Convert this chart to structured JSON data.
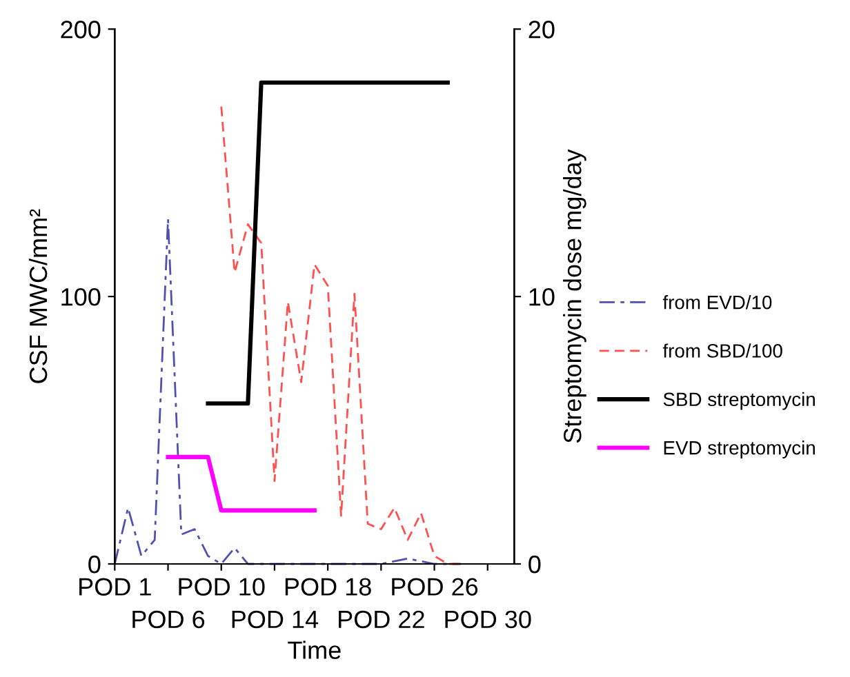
{
  "chart_data": {
    "type": "line",
    "xlabel": "Time",
    "ylabel": "CSF MWC/mm²",
    "y2label": "Streptomycin dose mg/day",
    "categories": [
      "POD 1",
      null,
      null,
      null,
      "POD 6",
      null,
      null,
      null,
      "POD 10",
      null,
      null,
      null,
      "POD 14",
      null,
      null,
      null,
      "POD 18",
      null,
      null,
      null,
      "POD 22",
      null,
      null,
      null,
      "POD 26",
      null,
      null,
      null,
      "POD 30",
      null,
      null
    ],
    "ylim": [
      0,
      200
    ],
    "yticks": [
      0,
      100,
      200
    ],
    "y2lim": [
      0,
      20
    ],
    "y2ticks": [
      0,
      10,
      20
    ],
    "grid": false,
    "legend": "right",
    "marker": "none",
    "series": [
      {
        "name": "from EVD/10",
        "color": "#5050b0",
        "line_style": "dashdot",
        "values": [
          0,
          21,
          3,
          9,
          129,
          11,
          13,
          3,
          0,
          6,
          0,
          0,
          0,
          0,
          0,
          0,
          0,
          0,
          0,
          0,
          0,
          1,
          2,
          1,
          0,
          0,
          0,
          null,
          null,
          null,
          null
        ]
      },
      {
        "name": "from SBD/100",
        "color": "#ff5050",
        "line_style": "dashed",
        "values": [
          null,
          null,
          null,
          null,
          null,
          null,
          null,
          null,
          171,
          109,
          127,
          120,
          31,
          98,
          68,
          112,
          104,
          18,
          101,
          15,
          13,
          21,
          9,
          19,
          3,
          0,
          0,
          null,
          null,
          null,
          null
        ]
      },
      {
        "name": "SBD streptomycin",
        "color": "#000000",
        "line_style": "solid",
        "axis": "y2",
        "values": [
          null,
          null,
          null,
          null,
          null,
          null,
          null,
          6,
          6,
          6,
          6,
          18,
          18,
          18,
          18,
          18,
          18,
          18,
          18,
          18,
          18,
          18,
          18,
          18,
          18,
          18,
          null,
          null,
          null,
          null,
          null
        ]
      },
      {
        "name": "EVD streptomycin",
        "color": "#ff00ff",
        "line_style": "solid",
        "axis": "y2",
        "values": [
          null,
          null,
          null,
          null,
          4,
          4,
          4,
          4,
          2,
          2,
          2,
          2,
          2,
          2,
          2,
          2,
          null,
          null,
          null,
          null,
          null,
          null,
          null,
          null,
          null,
          null,
          null,
          null,
          null,
          null,
          null
        ]
      }
    ]
  }
}
